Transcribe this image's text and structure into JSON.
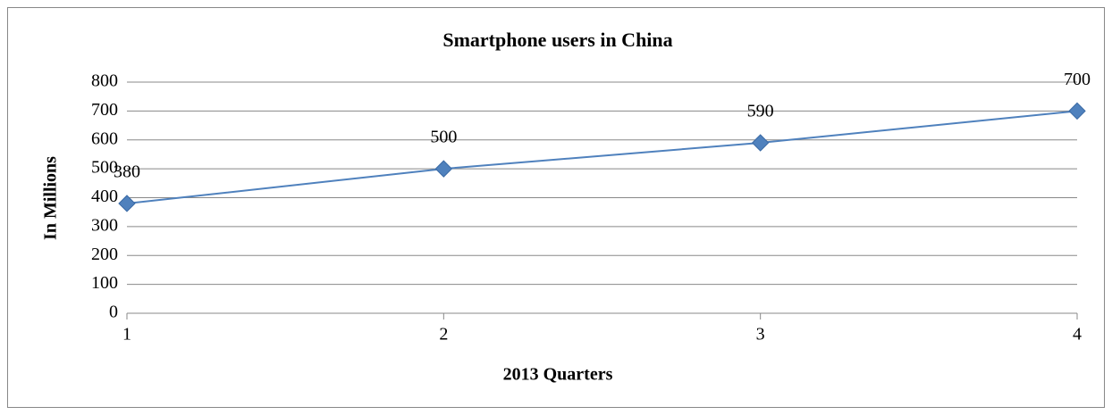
{
  "chart_data": {
    "type": "line",
    "title": "Smartphone users in China",
    "x_label": "2013 Quarters",
    "y_label": "In Millions",
    "x": [
      1,
      2,
      3,
      4
    ],
    "values": [
      380,
      500,
      590,
      700
    ],
    "color": "#4f81bd",
    "xlim": [
      1,
      4
    ],
    "xticks": [
      1,
      2,
      3,
      4
    ],
    "ylim": [
      0,
      800
    ],
    "yticks": [
      0,
      100,
      200,
      300,
      400,
      500,
      600,
      700,
      800
    ],
    "grid": true
  }
}
